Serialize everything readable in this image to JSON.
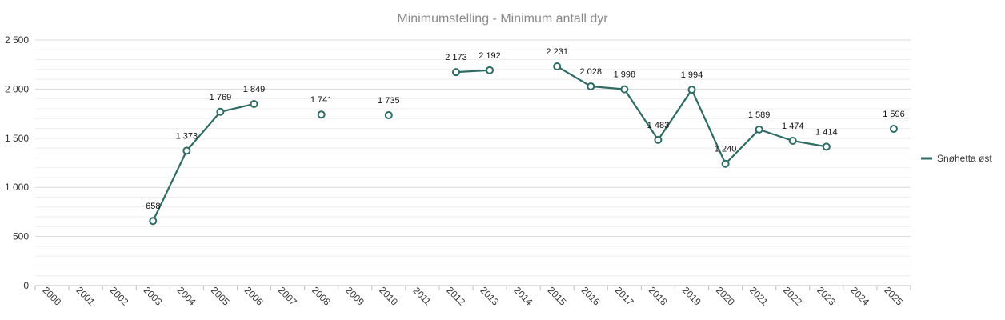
{
  "chart_data": {
    "type": "line",
    "title": "Minimumstelling - Minimum antall dyr",
    "xlabel": "",
    "ylabel": "",
    "ylim": [
      0,
      2500
    ],
    "yticks": [
      {
        "value": 0,
        "label": "0"
      },
      {
        "value": 500,
        "label": "500"
      },
      {
        "value": 1000,
        "label": "1 000"
      },
      {
        "value": 1500,
        "label": "1 500"
      },
      {
        "value": 2000,
        "label": "2 000"
      },
      {
        "value": 2500,
        "label": "2 500"
      }
    ],
    "categories": [
      "2000",
      "2001",
      "2002",
      "2003",
      "2004",
      "2005",
      "2006",
      "2007",
      "2008",
      "2009",
      "2010",
      "2011",
      "2012",
      "2013",
      "2014",
      "2015",
      "2016",
      "2017",
      "2018",
      "2019",
      "2020",
      "2021",
      "2022",
      "2023",
      "2024",
      "2025"
    ],
    "grid": true,
    "legend_position": "right",
    "series": [
      {
        "name": "Snøhetta øst",
        "color": "#2e6b62",
        "values": [
          null,
          null,
          null,
          658,
          1373,
          1769,
          1849,
          null,
          1741,
          null,
          1735,
          null,
          2173,
          2192,
          null,
          2231,
          2028,
          1998,
          1483,
          1994,
          1240,
          1589,
          1474,
          1414,
          null,
          1596
        ],
        "labels": [
          null,
          null,
          null,
          "658",
          "1 373",
          "1 769",
          "1 849",
          null,
          "1 741",
          null,
          "1 735",
          null,
          "2 173",
          "2 192",
          null,
          "2 231",
          "2 028",
          "1 998",
          "1 483",
          "1 994",
          "1 240",
          "1 589",
          "1 474",
          "1 414",
          null,
          "1 596"
        ]
      }
    ]
  }
}
